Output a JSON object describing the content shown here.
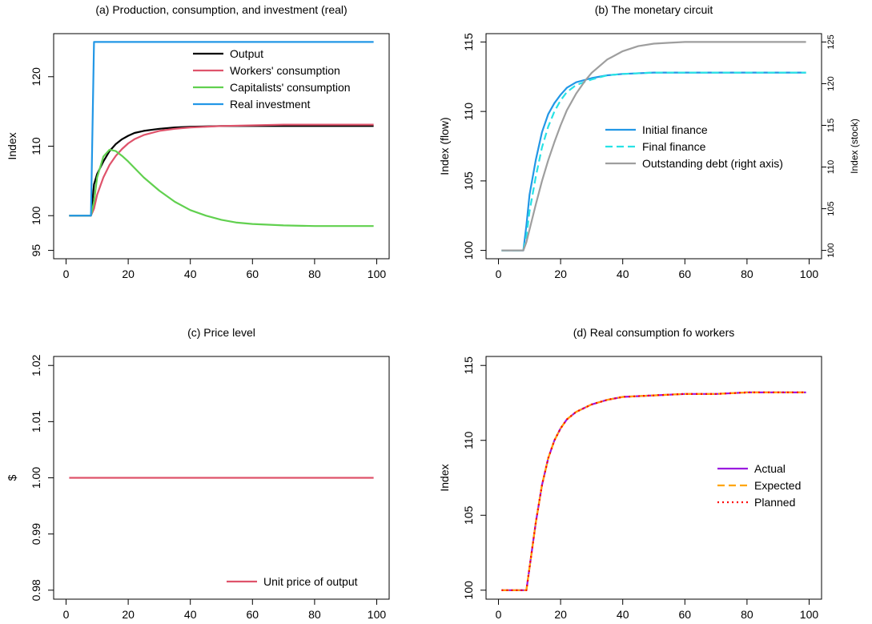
{
  "chart_data": [
    {
      "type": "line",
      "title": "(a) Production, consumption, and investment (real)",
      "xlabel": "",
      "ylabel": "Index",
      "xlim": [
        0,
        100
      ],
      "ylim": [
        95,
        125
      ],
      "xticks": [
        0,
        20,
        40,
        60,
        80,
        100
      ],
      "yticks": [
        95,
        100,
        110,
        120
      ],
      "legend_position": "top-right",
      "series": [
        {
          "name": "Output",
          "color": "#000000",
          "dash": "solid",
          "x": [
            1,
            8,
            9,
            10,
            12,
            14,
            16,
            18,
            20,
            22,
            25,
            30,
            35,
            40,
            50,
            60,
            70,
            80,
            90,
            99
          ],
          "y": [
            100,
            100,
            104.5,
            106,
            107.8,
            109.3,
            110.3,
            111,
            111.5,
            111.9,
            112.2,
            112.5,
            112.7,
            112.8,
            112.9,
            112.9,
            112.9,
            112.9,
            112.9,
            112.9
          ]
        },
        {
          "name": "Workers' consumption",
          "color": "#DF536B",
          "dash": "solid",
          "x": [
            1,
            8,
            9,
            10,
            12,
            14,
            16,
            18,
            20,
            22,
            25,
            30,
            35,
            40,
            50,
            60,
            70,
            80,
            90,
            99
          ],
          "y": [
            100,
            100,
            101,
            103,
            105.5,
            107.3,
            108.6,
            109.6,
            110.4,
            111,
            111.6,
            112.2,
            112.5,
            112.7,
            112.9,
            113,
            113.1,
            113.1,
            113.1,
            113.1
          ]
        },
        {
          "name": "Capitalists' consumption",
          "color": "#61D04F",
          "dash": "solid",
          "x": [
            1,
            8,
            9,
            10,
            12,
            14,
            16,
            18,
            20,
            25,
            30,
            35,
            40,
            45,
            50,
            55,
            60,
            70,
            80,
            90,
            99
          ],
          "y": [
            100,
            100,
            102,
            105.5,
            108.5,
            109.5,
            109.3,
            108.6,
            107.8,
            105.5,
            103.6,
            102,
            100.8,
            100,
            99.4,
            99,
            98.8,
            98.6,
            98.5,
            98.5,
            98.5
          ]
        },
        {
          "name": "Real investment",
          "color": "#2297E6",
          "dash": "solid",
          "x": [
            1,
            8,
            9,
            99
          ],
          "y": [
            100,
            100,
            125,
            125
          ]
        }
      ]
    },
    {
      "type": "line",
      "title": "(b) The monetary circuit",
      "xlabel": "",
      "ylabel": "Index (flow)",
      "ylabel_right": "Index (stock)",
      "xlim": [
        0,
        100
      ],
      "ylim": [
        100,
        115
      ],
      "ylim_right": [
        100,
        125
      ],
      "xticks": [
        0,
        20,
        40,
        60,
        80,
        100
      ],
      "yticks": [
        100,
        105,
        110,
        115
      ],
      "yticks_right": [
        100,
        105,
        110,
        115,
        120,
        125
      ],
      "legend_position": "center-right",
      "series": [
        {
          "name": "Initial finance",
          "color": "#2297E6",
          "dash": "solid",
          "axis": "left",
          "x": [
            1,
            8,
            9,
            10,
            12,
            14,
            16,
            18,
            20,
            22,
            25,
            30,
            35,
            40,
            50,
            60,
            70,
            80,
            90,
            99
          ],
          "y": [
            100,
            100,
            101.8,
            104,
            106.5,
            108.5,
            109.8,
            110.6,
            111.2,
            111.7,
            112.1,
            112.4,
            112.6,
            112.7,
            112.8,
            112.8,
            112.8,
            112.8,
            112.8,
            112.8
          ]
        },
        {
          "name": "Final finance",
          "color": "#28E2E5",
          "dash": "dashed",
          "axis": "left",
          "x": [
            1,
            8,
            9,
            10,
            12,
            14,
            16,
            18,
            20,
            22,
            25,
            30,
            35,
            40,
            50,
            60,
            70,
            80,
            90,
            99
          ],
          "y": [
            100,
            100,
            101,
            102.8,
            105.3,
            107.4,
            108.9,
            110,
            110.8,
            111.4,
            111.9,
            112.3,
            112.6,
            112.7,
            112.8,
            112.8,
            112.8,
            112.8,
            112.8,
            112.8
          ]
        },
        {
          "name": "Outstanding debt (right axis)",
          "color": "#9E9E9E",
          "dash": "solid",
          "axis": "right",
          "x": [
            1,
            8,
            9,
            10,
            12,
            14,
            16,
            18,
            20,
            22,
            25,
            28,
            30,
            35,
            40,
            45,
            50,
            55,
            60,
            70,
            80,
            90,
            99
          ],
          "y": [
            100,
            100,
            101,
            102.5,
            105.5,
            108.3,
            110.8,
            113,
            115,
            116.8,
            118.8,
            120.4,
            121.3,
            122.9,
            123.9,
            124.5,
            124.8,
            124.9,
            125,
            125,
            125,
            125,
            125
          ]
        }
      ]
    },
    {
      "type": "line",
      "title": "(c) Price level",
      "xlabel": "",
      "ylabel": "$",
      "xlim": [
        0,
        100
      ],
      "ylim": [
        0.98,
        1.02
      ],
      "xticks": [
        0,
        20,
        40,
        60,
        80,
        100
      ],
      "yticks": [
        0.98,
        0.99,
        1.0,
        1.01,
        1.02
      ],
      "ytick_labels": [
        "0.98",
        "0.99",
        "1.00",
        "1.01",
        "1.02"
      ],
      "legend_position": "bottom-right",
      "series": [
        {
          "name": "Unit price of output",
          "color": "#DF536B",
          "dash": "solid",
          "x": [
            1,
            99
          ],
          "y": [
            1.0,
            1.0
          ]
        }
      ]
    },
    {
      "type": "line",
      "title": "(d) Real consumption fo workers",
      "xlabel": "",
      "ylabel": "Index",
      "xlim": [
        0,
        100
      ],
      "ylim": [
        100,
        115
      ],
      "xticks": [
        0,
        20,
        40,
        60,
        80,
        100
      ],
      "yticks": [
        100,
        105,
        110,
        115
      ],
      "legend_position": "center-right",
      "series": [
        {
          "name": "Actual",
          "color": "#9A1BE0",
          "dash": "solid",
          "x": [
            1,
            8,
            9,
            10,
            12,
            14,
            16,
            18,
            20,
            22,
            25,
            30,
            35,
            40,
            50,
            60,
            70,
            80,
            90,
            99
          ],
          "y": [
            100,
            100,
            100,
            101.5,
            104.5,
            107,
            108.8,
            110,
            110.8,
            111.4,
            111.9,
            112.4,
            112.7,
            112.9,
            113.0,
            113.1,
            113.1,
            113.2,
            113.2,
            113.2
          ]
        },
        {
          "name": "Expected",
          "color": "#FFA500",
          "dash": "dashed",
          "x": [
            1,
            8,
            9,
            10,
            12,
            14,
            16,
            18,
            20,
            22,
            25,
            30,
            35,
            40,
            50,
            60,
            70,
            80,
            90,
            99
          ],
          "y": [
            100,
            100,
            100,
            101.5,
            104.5,
            107,
            108.8,
            110,
            110.8,
            111.4,
            111.9,
            112.4,
            112.7,
            112.9,
            113.0,
            113.1,
            113.1,
            113.2,
            113.2,
            113.2
          ]
        },
        {
          "name": "Planned",
          "color": "#FF0000",
          "dash": "dotted",
          "x": [
            1,
            8,
            9,
            10,
            12,
            14,
            16,
            18,
            20,
            22,
            25,
            30,
            35,
            40,
            50,
            60,
            70,
            80,
            90,
            99
          ],
          "y": [
            100,
            100,
            100,
            101.5,
            104.5,
            107,
            108.8,
            110,
            110.8,
            111.4,
            111.9,
            112.4,
            112.7,
            112.9,
            113.0,
            113.1,
            113.1,
            113.2,
            113.2,
            113.2
          ]
        }
      ]
    }
  ]
}
